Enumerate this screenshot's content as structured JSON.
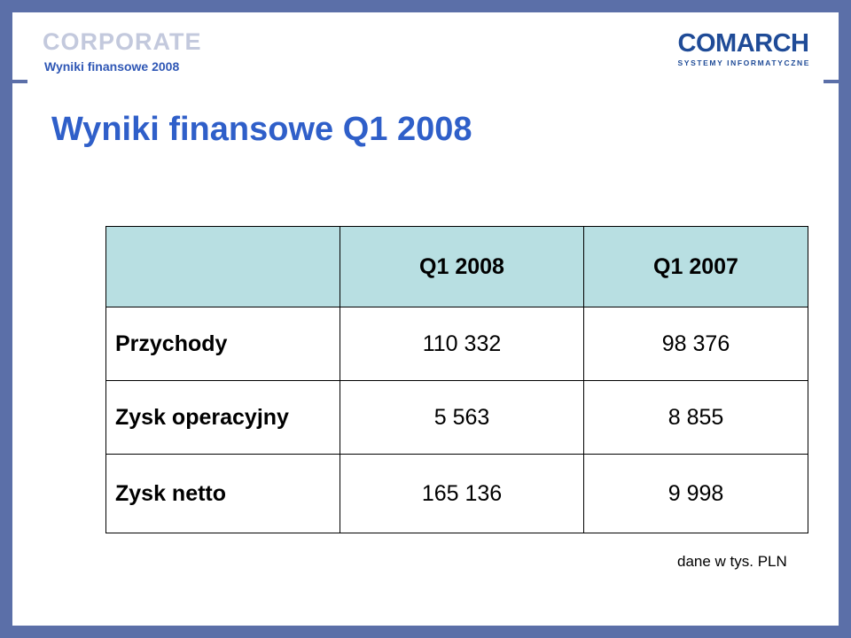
{
  "header": {
    "corporate_label": "CORPORATE",
    "subtitle": "Wyniki finansowe 2008",
    "brand_name": "COMARCH",
    "brand_tagline": "SYSTEMY INFORMATYCZNE"
  },
  "slide": {
    "title": "Wyniki finansowe Q1 2008"
  },
  "table": {
    "columns": [
      "",
      "Q1 2008",
      "Q1 2007"
    ],
    "rows": [
      {
        "label": "Przychody",
        "q1_2008": "110 332",
        "q1_2007": "98 376"
      },
      {
        "label": "Zysk operacyjny",
        "q1_2008": "5 563",
        "q1_2007": "8 855"
      },
      {
        "label": "Zysk netto",
        "q1_2008": "165 136",
        "q1_2007": "9 998"
      }
    ]
  },
  "footnote": "dane w tys. PLN",
  "colors": {
    "frame": "#5b6fa8",
    "title": "#2f5fc9",
    "header_fill": "#b8dfe2",
    "brand": "#1f4b97"
  }
}
